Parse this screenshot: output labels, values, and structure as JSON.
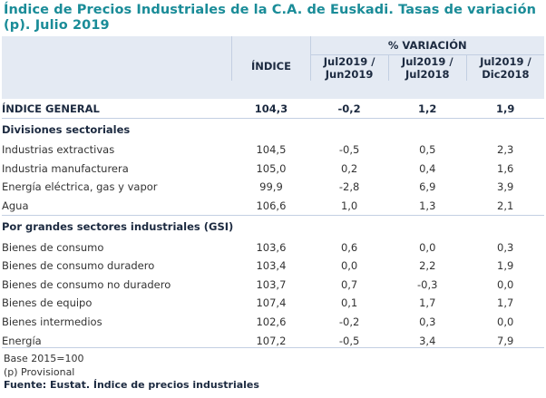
{
  "title": "Índice de Precios Industriales de la C.A. de Euskadi. Tasas de variación (p). Julio 2019",
  "header": {
    "indice": "ÍNDICE",
    "variacion": "% VARIACIÓN",
    "cols": [
      {
        "line1": "Jul2019 /",
        "line2": "Jun2019"
      },
      {
        "line1": "Jul2019 /",
        "line2": "Jul2018"
      },
      {
        "line1": "Jul2019 /",
        "line2": "Dic2018"
      }
    ]
  },
  "general": {
    "label": "ÍNDICE GENERAL",
    "indice": "104,3",
    "v1": "-0,2",
    "v2": "1,2",
    "v3": "1,9"
  },
  "sections": [
    {
      "label": "Divisiones sectoriales",
      "rows": [
        {
          "label": "Industrias extractivas",
          "level": 1,
          "indice": "104,5",
          "v1": "-0,5",
          "v2": "0,5",
          "v3": "2,3"
        },
        {
          "label": "Industria manufacturera",
          "level": 1,
          "indice": "105,0",
          "v1": "0,2",
          "v2": "0,4",
          "v3": "1,6"
        },
        {
          "label": "Energía eléctrica, gas y vapor",
          "level": 1,
          "indice": "99,9",
          "v1": "-2,8",
          "v2": "6,9",
          "v3": "3,9"
        },
        {
          "label": "Agua",
          "level": 1,
          "indice": "106,6",
          "v1": "1,0",
          "v2": "1,3",
          "v3": "2,1"
        }
      ]
    },
    {
      "label": "Por grandes sectores industriales (GSI)",
      "rows": [
        {
          "label": "Bienes de consumo",
          "level": 1,
          "indice": "103,6",
          "v1": "0,6",
          "v2": "0,0",
          "v3": "0,3"
        },
        {
          "label": "Bienes de consumo duradero",
          "level": 2,
          "indice": "103,4",
          "v1": "0,0",
          "v2": "2,2",
          "v3": "1,9"
        },
        {
          "label": "Bienes de consumo no duradero",
          "level": 2,
          "indice": "103,7",
          "v1": "0,7",
          "v2": "-0,3",
          "v3": "0,0"
        },
        {
          "label": "Bienes de equipo",
          "level": 1,
          "indice": "107,4",
          "v1": "0,1",
          "v2": "1,7",
          "v3": "1,7"
        },
        {
          "label": "Bienes intermedios",
          "level": 1,
          "indice": "102,6",
          "v1": "-0,2",
          "v2": "0,3",
          "v3": "0,0"
        },
        {
          "label": "Energía",
          "level": 1,
          "indice": "107,2",
          "v1": "-0,5",
          "v2": "3,4",
          "v3": "7,9"
        }
      ]
    }
  ],
  "notes": {
    "base": "Base 2015=100",
    "provisional": "(p) Provisional",
    "source": "Fuente: Eustat. Índice de precios industriales"
  }
}
